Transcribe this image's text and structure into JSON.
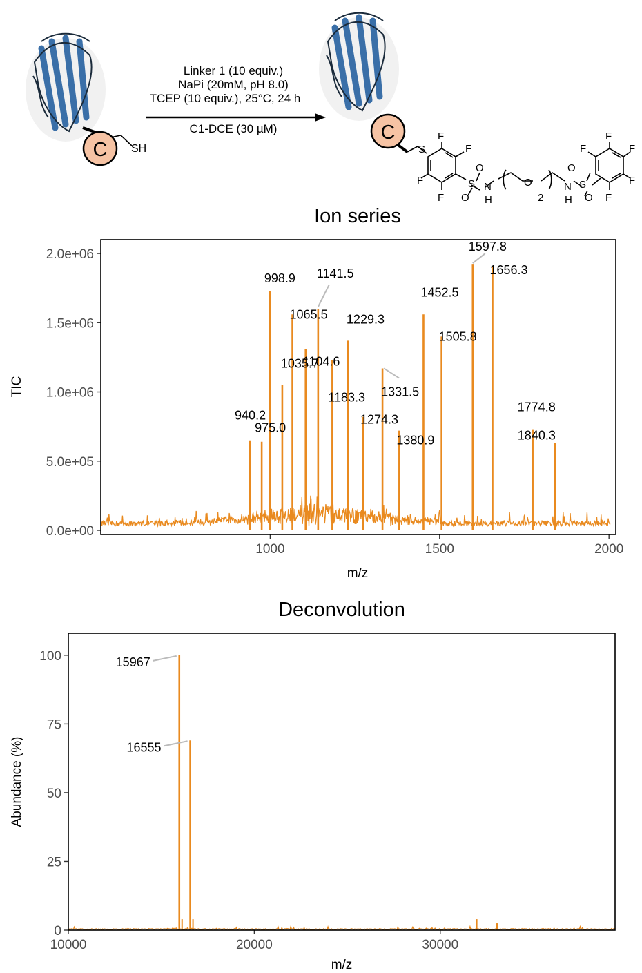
{
  "scheme": {
    "conditions": [
      "Linker 1 (10 equiv.)",
      "NaPi (20mM, pH 8.0)",
      "TCEP (10 equiv.), 25°C, 24 h"
    ],
    "below_arrow": "C1-DCE (30 µM)",
    "cys_label": "C",
    "sh_label": "SH",
    "atoms": {
      "S": "S",
      "F": "F",
      "O": "O",
      "N": "N",
      "H": "H",
      "sub": "2"
    }
  },
  "chart_data": [
    {
      "type": "line",
      "title": "Ion series",
      "xlabel": "m/z",
      "ylabel": "TIC",
      "xlim": [
        500,
        2020
      ],
      "ylim": [
        0,
        2100000
      ],
      "xticks": [
        1000,
        1500,
        2000
      ],
      "yticks": [
        "0.0e+00",
        "5.0e+05",
        "1.0e+06",
        "1.5e+06",
        "2.0e+06"
      ],
      "ytick_values": [
        0,
        500000,
        1000000,
        1500000,
        2000000
      ],
      "grid": false,
      "color": "#E98A1F",
      "peaks": [
        {
          "mz": 940.2,
          "tic": 650000,
          "label": "940.2"
        },
        {
          "mz": 975.0,
          "tic": 640000,
          "label": "975.0"
        },
        {
          "mz": 998.9,
          "tic": 1730000,
          "label": "998.9"
        },
        {
          "mz": 1035.7,
          "tic": 1050000,
          "label": "1035.7"
        },
        {
          "mz": 1065.5,
          "tic": 1560000,
          "label": "1065.5"
        },
        {
          "mz": 1104.6,
          "tic": 1310000,
          "label": "1104.6"
        },
        {
          "mz": 1141.5,
          "tic": 1600000,
          "label": "1141.5"
        },
        {
          "mz": 1183.3,
          "tic": 1230000,
          "label": "1183.3"
        },
        {
          "mz": 1229.3,
          "tic": 1370000,
          "label": "1229.3"
        },
        {
          "mz": 1274.3,
          "tic": 820000,
          "label": "1274.3"
        },
        {
          "mz": 1331.5,
          "tic": 1170000,
          "label": "1331.5"
        },
        {
          "mz": 1380.9,
          "tic": 720000,
          "label": "1380.9"
        },
        {
          "mz": 1452.5,
          "tic": 1560000,
          "label": "1452.5"
        },
        {
          "mz": 1505.8,
          "tic": 1400000,
          "label": "1505.8"
        },
        {
          "mz": 1597.8,
          "tic": 1920000,
          "label": "1597.8"
        },
        {
          "mz": 1656.3,
          "tic": 1910000,
          "label": "1656.3"
        },
        {
          "mz": 1774.8,
          "tic": 730000,
          "label": "1774.8"
        },
        {
          "mz": 1840.3,
          "tic": 630000,
          "label": "1840.3"
        }
      ],
      "baseline_noise": "low-level continuous signal (~2e+04 to 2e+05) rising toward 1000–1400 m/z"
    },
    {
      "type": "line",
      "title": "Deconvolution",
      "xlabel": "m/z",
      "ylabel": "Abundance (%)",
      "xlim": [
        10000,
        39400
      ],
      "ylim": [
        0,
        108
      ],
      "xticks": [
        10000,
        20000,
        30000
      ],
      "yticks": [
        0,
        25,
        50,
        75,
        100
      ],
      "grid": false,
      "color": "#E98A1F",
      "peaks": [
        {
          "mz": 15967,
          "abundance": 100,
          "label": "15967"
        },
        {
          "mz": 16555,
          "abundance": 69,
          "label": "16555"
        },
        {
          "mz": 31950,
          "abundance": 4,
          "label": ""
        },
        {
          "mz": 33050,
          "abundance": 2.5,
          "label": ""
        }
      ]
    }
  ]
}
